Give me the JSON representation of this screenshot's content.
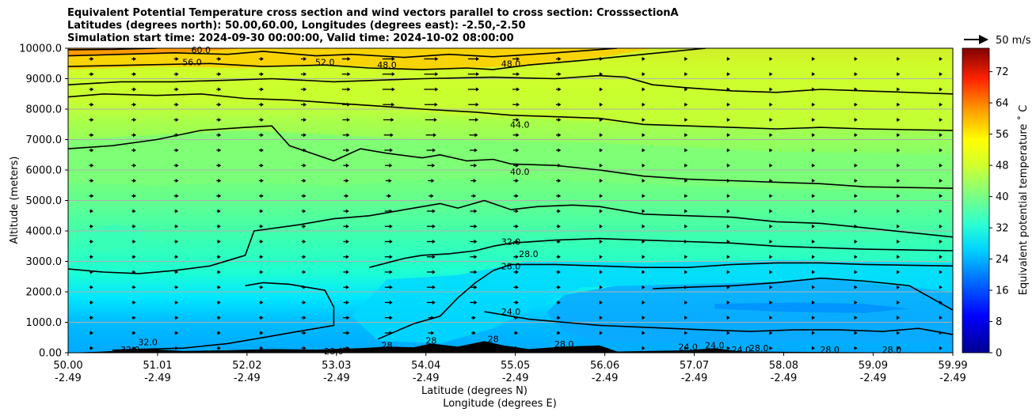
{
  "title_lines": [
    "Equivalent Potential Temperature cross section and wind vectors parallel to cross section: CrosssectionA",
    "Latitudes (degrees north): 50.00,60.00, Longitudes (degrees east): -2.50,-2.50",
    "Simulation start time: 2024-09-30 00:00:00, Valid time: 2024-10-02 08:00:00"
  ],
  "chart_data": {
    "type": "heatmap",
    "subtype": "filled contour cross section with contour lines and wind vectors",
    "title": "Equivalent Potential Temperature cross section and wind vectors parallel to cross section: CrosssectionA",
    "ylabel": "Altitude (meters)",
    "xlabel": "Latitude (degrees N)",
    "xlabel2": "Longitude (degrees E)",
    "ylim": [
      0,
      10000
    ],
    "yticks": [
      "0.00",
      "1000.0",
      "2000.0",
      "3000.0",
      "4000.0",
      "5000.0",
      "6000.0",
      "7000.0",
      "8000.0",
      "9000.0",
      "10000.0"
    ],
    "xlim": [
      50.0,
      59.99
    ],
    "xticks": [
      {
        "lat": "50.00",
        "lon": "-2.49"
      },
      {
        "lat": "51.01",
        "lon": "-2.49"
      },
      {
        "lat": "52.02",
        "lon": "-2.49"
      },
      {
        "lat": "53.03",
        "lon": "-2.49"
      },
      {
        "lat": "54.04",
        "lon": "-2.49"
      },
      {
        "lat": "55.05",
        "lon": "-2.49"
      },
      {
        "lat": "56.06",
        "lon": "-2.49"
      },
      {
        "lat": "57.07",
        "lon": "-2.49"
      },
      {
        "lat": "58.08",
        "lon": "-2.49"
      },
      {
        "lat": "59.09",
        "lon": "-2.49"
      },
      {
        "lat": "59.99",
        "lon": "-2.49"
      }
    ],
    "grid": "horizontal",
    "colorbar": {
      "label": "Equivalent potential temperature ˚ C",
      "range": [
        0,
        78
      ],
      "ticks": [
        "0",
        "8",
        "16",
        "24",
        "32",
        "40",
        "48",
        "56",
        "64",
        "72"
      ]
    },
    "quiver_key": "50 m/s",
    "contour_labels": [
      {
        "text": "60.0",
        "lat": 51.5,
        "alt": 9950
      },
      {
        "text": "56.0",
        "lat": 51.4,
        "alt": 9550
      },
      {
        "text": "52.0",
        "lat": 52.9,
        "alt": 9550
      },
      {
        "text": "48.0",
        "lat": 53.6,
        "alt": 9450
      },
      {
        "text": "48.0",
        "lat": 55.0,
        "alt": 9500
      },
      {
        "text": "44.0",
        "lat": 55.1,
        "alt": 7500
      },
      {
        "text": "40.0",
        "lat": 55.1,
        "alt": 5950
      },
      {
        "text": "32.0",
        "lat": 55.0,
        "alt": 3650
      },
      {
        "text": "28.0",
        "lat": 55.2,
        "alt": 3250
      },
      {
        "text": "28.0",
        "lat": 55.0,
        "alt": 2850
      },
      {
        "text": "24.0",
        "lat": 55.0,
        "alt": 1350
      },
      {
        "text": "32.0",
        "lat": 50.9,
        "alt": 350
      },
      {
        "text": "32.0",
        "lat": 50.7,
        "alt": 100
      },
      {
        "text": "28.0",
        "lat": 53.0,
        "alt": 50
      },
      {
        "text": "28",
        "lat": 53.6,
        "alt": 250
      },
      {
        "text": "28",
        "lat": 54.1,
        "alt": 400
      },
      {
        "text": "28",
        "lat": 54.8,
        "alt": 450
      },
      {
        "text": "28.0",
        "lat": 55.6,
        "alt": 280
      },
      {
        "text": "24.0",
        "lat": 57.0,
        "alt": 200
      },
      {
        "text": "24.0",
        "lat": 57.3,
        "alt": 250
      },
      {
        "text": "24.0",
        "lat": 57.6,
        "alt": 100
      },
      {
        "text": "28.0",
        "lat": 57.8,
        "alt": 150
      },
      {
        "text": "28.0",
        "lat": 58.6,
        "alt": 100
      },
      {
        "text": "28.0",
        "lat": 59.3,
        "alt": 100
      }
    ],
    "contour_lines": [
      {
        "level": 60,
        "points": [
          [
            50.0,
            9950
          ],
          [
            50.5,
            9960
          ],
          [
            51.0,
            10000
          ]
        ]
      },
      {
        "level": 56,
        "points": [
          [
            50.0,
            9750
          ],
          [
            50.6,
            9800
          ],
          [
            51.2,
            9850
          ],
          [
            51.8,
            9800
          ],
          [
            52.2,
            9900
          ],
          [
            52.8,
            9750
          ],
          [
            53.2,
            9800
          ],
          [
            53.8,
            9700
          ],
          [
            54.3,
            9800
          ],
          [
            54.8,
            9720
          ],
          [
            55.5,
            9850
          ],
          [
            56.2,
            10000
          ]
        ]
      },
      {
        "level": 52,
        "points": [
          [
            50.0,
            9400
          ],
          [
            50.8,
            9450
          ],
          [
            51.6,
            9500
          ],
          [
            52.2,
            9400
          ],
          [
            52.9,
            9450
          ],
          [
            53.4,
            9350
          ],
          [
            54.0,
            9300
          ],
          [
            54.5,
            9350
          ],
          [
            54.8,
            9300
          ],
          [
            55.2,
            9450
          ],
          [
            55.8,
            9600
          ],
          [
            56.5,
            9800
          ],
          [
            57.2,
            10000
          ]
        ]
      },
      {
        "level": 48,
        "points": [
          [
            50.0,
            8800
          ],
          [
            50.6,
            8900
          ],
          [
            51.2,
            8900
          ],
          [
            51.8,
            8950
          ],
          [
            52.3,
            9000
          ],
          [
            53.0,
            8900
          ],
          [
            53.5,
            8950
          ],
          [
            54.0,
            9000
          ],
          [
            54.8,
            9050
          ],
          [
            55.5,
            9000
          ],
          [
            56.0,
            9100
          ],
          [
            56.3,
            9050
          ],
          [
            56.6,
            8800
          ],
          [
            57.0,
            8700
          ],
          [
            57.5,
            8600
          ],
          [
            58.0,
            8550
          ],
          [
            58.5,
            8650
          ],
          [
            59.0,
            8600
          ],
          [
            59.99,
            8500
          ]
        ]
      },
      {
        "level": 48,
        "points": [
          [
            50.0,
            8400
          ],
          [
            50.4,
            8500
          ],
          [
            51.0,
            8450
          ],
          [
            51.5,
            8500
          ],
          [
            52.0,
            8350
          ],
          [
            52.5,
            8300
          ],
          [
            53.0,
            8200
          ],
          [
            53.5,
            8100
          ],
          [
            54.0,
            8000
          ],
          [
            54.6,
            7900
          ],
          [
            55.0,
            7800
          ],
          [
            55.5,
            7750
          ],
          [
            56.0,
            7700
          ],
          [
            56.5,
            7500
          ],
          [
            57.0,
            7450
          ],
          [
            57.5,
            7400
          ],
          [
            58.0,
            7350
          ],
          [
            58.5,
            7400
          ],
          [
            59.0,
            7350
          ],
          [
            59.99,
            7300
          ]
        ]
      },
      {
        "level": 44,
        "points": [
          [
            50.0,
            6700
          ],
          [
            50.5,
            6800
          ],
          [
            51.0,
            7000
          ],
          [
            51.5,
            7300
          ],
          [
            52.0,
            7400
          ],
          [
            52.3,
            7450
          ],
          [
            52.5,
            6800
          ],
          [
            52.8,
            6500
          ],
          [
            53.0,
            6300
          ],
          [
            53.3,
            6700
          ],
          [
            53.6,
            6550
          ],
          [
            54.0,
            6400
          ],
          [
            54.2,
            6500
          ],
          [
            54.5,
            6300
          ],
          [
            54.8,
            6350
          ],
          [
            55.0,
            6200
          ],
          [
            55.5,
            6150
          ],
          [
            56.0,
            6000
          ],
          [
            56.5,
            5800
          ],
          [
            57.0,
            5700
          ],
          [
            57.5,
            5650
          ],
          [
            58.0,
            5600
          ],
          [
            58.5,
            5550
          ],
          [
            59.0,
            5450
          ],
          [
            59.99,
            5400
          ]
        ]
      },
      {
        "level": 40,
        "points": [
          [
            50.0,
            2750
          ],
          [
            50.4,
            2650
          ],
          [
            50.8,
            2600
          ],
          [
            51.2,
            2700
          ],
          [
            51.6,
            2850
          ],
          [
            52.0,
            3200
          ],
          [
            52.1,
            4000
          ],
          [
            52.6,
            4200
          ],
          [
            53.0,
            4400
          ],
          [
            53.4,
            4500
          ],
          [
            53.8,
            4700
          ],
          [
            54.2,
            4900
          ],
          [
            54.4,
            4750
          ],
          [
            54.7,
            5000
          ],
          [
            55.0,
            4700
          ],
          [
            55.3,
            4800
          ],
          [
            55.7,
            4850
          ],
          [
            56.0,
            4800
          ],
          [
            56.5,
            4550
          ],
          [
            57.0,
            4500
          ],
          [
            57.5,
            4450
          ],
          [
            58.0,
            4300
          ],
          [
            58.5,
            4250
          ],
          [
            59.0,
            4100
          ],
          [
            59.99,
            3800
          ]
        ]
      },
      {
        "level": 36,
        "points": [
          [
            52.0,
            2200
          ],
          [
            52.2,
            2300
          ],
          [
            52.5,
            2250
          ],
          [
            52.9,
            2050
          ],
          [
            53.0,
            1500
          ],
          [
            53.0,
            900
          ],
          [
            52.6,
            700
          ],
          [
            52.2,
            500
          ],
          [
            51.8,
            300
          ],
          [
            51.3,
            150
          ],
          [
            50.7,
            100
          ],
          [
            50.5,
            80
          ]
        ]
      },
      {
        "level": 32,
        "points": [
          [
            53.4,
            2800
          ],
          [
            53.8,
            3100
          ],
          [
            54.0,
            3200
          ],
          [
            54.3,
            3250
          ],
          [
            54.6,
            3350
          ],
          [
            54.8,
            3500
          ],
          [
            55.0,
            3600
          ],
          [
            55.5,
            3700
          ],
          [
            56.0,
            3750
          ],
          [
            56.5,
            3700
          ],
          [
            57.0,
            3650
          ],
          [
            57.5,
            3600
          ],
          [
            58.0,
            3500
          ],
          [
            58.5,
            3450
          ],
          [
            59.0,
            3400
          ],
          [
            59.99,
            3350
          ]
        ]
      },
      {
        "level": 28,
        "points": [
          [
            53.5,
            450
          ],
          [
            53.9,
            950
          ],
          [
            54.2,
            1200
          ],
          [
            54.4,
            1800
          ],
          [
            54.6,
            2300
          ],
          [
            54.8,
            2700
          ],
          [
            55.0,
            2900
          ],
          [
            55.5,
            2900
          ],
          [
            56.0,
            2850
          ],
          [
            56.5,
            2800
          ],
          [
            57.0,
            2800
          ],
          [
            57.5,
            2900
          ],
          [
            58.0,
            2950
          ],
          [
            58.5,
            2950
          ],
          [
            59.0,
            2900
          ],
          [
            59.99,
            2850
          ]
        ]
      },
      {
        "level": 24,
        "points": [
          [
            54.7,
            1350
          ],
          [
            55.2,
            1100
          ],
          [
            55.6,
            1000
          ],
          [
            56.0,
            900
          ],
          [
            56.4,
            850
          ],
          [
            56.8,
            800
          ],
          [
            57.2,
            750
          ],
          [
            57.7,
            700
          ],
          [
            58.2,
            750
          ],
          [
            58.7,
            750
          ],
          [
            59.2,
            700
          ],
          [
            59.6,
            800
          ],
          [
            59.99,
            600
          ]
        ]
      },
      {
        "level": 24,
        "points": [
          [
            56.6,
            2100
          ],
          [
            57.0,
            2150
          ],
          [
            57.5,
            2200
          ],
          [
            58.0,
            2300
          ],
          [
            58.5,
            2450
          ],
          [
            59.0,
            2350
          ],
          [
            59.5,
            2200
          ],
          [
            59.99,
            1400
          ]
        ]
      }
    ],
    "terrain_profile": [
      [
        50.0,
        0
      ],
      [
        50.4,
        40
      ],
      [
        50.9,
        120
      ],
      [
        51.3,
        60
      ],
      [
        51.8,
        80
      ],
      [
        52.3,
        120
      ],
      [
        52.8,
        100
      ],
      [
        53.3,
        150
      ],
      [
        53.6,
        200
      ],
      [
        53.9,
        180
      ],
      [
        54.1,
        300
      ],
      [
        54.4,
        200
      ],
      [
        54.7,
        380
      ],
      [
        54.9,
        250
      ],
      [
        55.2,
        120
      ],
      [
        55.6,
        200
      ],
      [
        56.0,
        240
      ],
      [
        56.2,
        40
      ],
      [
        57.0,
        80
      ],
      [
        57.3,
        150
      ],
      [
        57.6,
        40
      ],
      [
        59.99,
        0
      ]
    ]
  }
}
